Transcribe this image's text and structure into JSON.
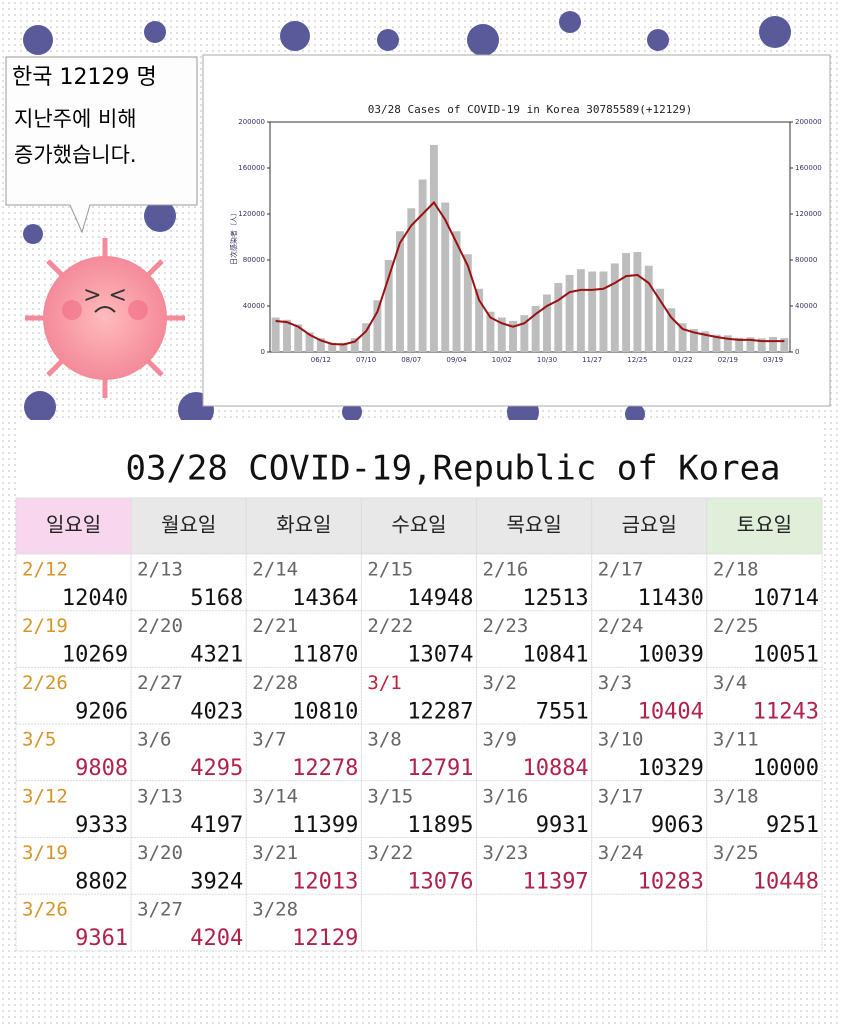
{
  "bubble": {
    "line1": "한국 12129 명",
    "line2": "지난주에 비해",
    "line3": "증가했습니다."
  },
  "chart_data": {
    "type": "bar-line",
    "title": "03/28 Cases of COVID-19 in Korea 30785589(+12129)",
    "y_label": "日次感染者（人）",
    "categories": [
      null,
      null,
      null,
      null,
      "06/12",
      null,
      null,
      null,
      "07/10",
      null,
      null,
      null,
      "08/07",
      null,
      null,
      null,
      "09/04",
      null,
      null,
      null,
      "10/02",
      null,
      null,
      null,
      "10/30",
      null,
      null,
      null,
      "11/27",
      null,
      null,
      null,
      "12/25",
      null,
      null,
      null,
      "01/22",
      null,
      null,
      null,
      "02/19",
      null,
      null,
      null,
      "03/19",
      null
    ],
    "series": [
      {
        "type": "bar",
        "color": "#bdbdbd",
        "values": [
          30000,
          28000,
          24000,
          17000,
          12000,
          8000,
          8000,
          12000,
          25000,
          45000,
          80000,
          105000,
          125000,
          150000,
          180000,
          130000,
          105000,
          85000,
          55000,
          35000,
          30000,
          27000,
          32000,
          40000,
          50000,
          60000,
          67000,
          72000,
          70000,
          70000,
          77000,
          86000,
          87000,
          75000,
          55000,
          38000,
          25000,
          20000,
          18000,
          15000,
          14500,
          12300,
          12800,
          11900,
          13100,
          12100
        ]
      },
      {
        "type": "line",
        "color": "#9b1010",
        "values": [
          27000,
          26000,
          22000,
          15000,
          10000,
          7000,
          6500,
          9000,
          18000,
          35000,
          65000,
          95000,
          110000,
          120000,
          130000,
          115000,
          95000,
          75000,
          45000,
          30000,
          25000,
          22000,
          25000,
          33000,
          40000,
          45000,
          52000,
          54000,
          54000,
          55000,
          60000,
          66000,
          67000,
          60000,
          45000,
          30000,
          20000,
          17000,
          15000,
          13000,
          11500,
          10500,
          10500,
          9500,
          9500,
          9500
        ]
      }
    ],
    "ylim": [
      0,
      200000
    ],
    "yticks": [
      0,
      40000,
      80000,
      120000,
      160000,
      200000
    ],
    "y2lim": [
      0,
      200000
    ],
    "y2ticks": [
      0,
      40000,
      80000,
      120000,
      160000,
      200000
    ]
  },
  "calendar": {
    "title": "03/28 COVID-19,Republic of Korea",
    "headers": [
      "일요일",
      "월요일",
      "화요일",
      "수요일",
      "목요일",
      "금요일",
      "토요일"
    ],
    "header_colors": [
      "#f8d7ee",
      "#e8e8e8",
      "#e8e8e8",
      "#e8e8e8",
      "#e8e8e8",
      "#e8e8e8",
      "#e1efda"
    ],
    "sunday_color": "#d4952a",
    "date_color": "#666666",
    "cases_color": "#111111",
    "rows": [
      [
        {
          "date": "2/12",
          "cases": "12040"
        },
        {
          "date": "2/13",
          "cases": "5168"
        },
        {
          "date": "2/14",
          "cases": "14364"
        },
        {
          "date": "2/15",
          "cases": "14948"
        },
        {
          "date": "2/16",
          "cases": "12513"
        },
        {
          "date": "2/17",
          "cases": "11430"
        },
        {
          "date": "2/18",
          "cases": "10714"
        }
      ],
      [
        {
          "date": "2/19",
          "cases": "10269"
        },
        {
          "date": "2/20",
          "cases": "4321"
        },
        {
          "date": "2/21",
          "cases": "11870"
        },
        {
          "date": "2/22",
          "cases": "13074"
        },
        {
          "date": "2/23",
          "cases": "10841"
        },
        {
          "date": "2/24",
          "cases": "10039"
        },
        {
          "date": "2/25",
          "cases": "10051"
        }
      ],
      [
        {
          "date": "2/26",
          "cases": "9206"
        },
        {
          "date": "2/27",
          "cases": "4023"
        },
        {
          "date": "2/28",
          "cases": "10810"
        },
        {
          "date": "3/1",
          "cases": "12287",
          "date_color": "#c0203c"
        },
        {
          "date": "3/2",
          "cases": "7551"
        },
        {
          "date": "3/3",
          "cases": "10404",
          "cases_color": "#b0224a"
        },
        {
          "date": "3/4",
          "cases": "11243",
          "cases_color": "#b0224a"
        }
      ],
      [
        {
          "date": "3/5",
          "cases": "9808",
          "cases_color": "#b0224a"
        },
        {
          "date": "3/6",
          "cases": "4295",
          "cases_color": "#b0224a"
        },
        {
          "date": "3/7",
          "cases": "12278",
          "cases_color": "#b0224a"
        },
        {
          "date": "3/8",
          "cases": "12791",
          "cases_color": "#b0224a"
        },
        {
          "date": "3/9",
          "cases": "10884",
          "cases_color": "#b0224a"
        },
        {
          "date": "3/10",
          "cases": "10329"
        },
        {
          "date": "3/11",
          "cases": "10000"
        }
      ],
      [
        {
          "date": "3/12",
          "cases": "9333"
        },
        {
          "date": "3/13",
          "cases": "4197"
        },
        {
          "date": "3/14",
          "cases": "11399"
        },
        {
          "date": "3/15",
          "cases": "11895"
        },
        {
          "date": "3/16",
          "cases": "9931"
        },
        {
          "date": "3/17",
          "cases": "9063"
        },
        {
          "date": "3/18",
          "cases": "9251"
        }
      ],
      [
        {
          "date": "3/19",
          "cases": "8802"
        },
        {
          "date": "3/20",
          "cases": "3924"
        },
        {
          "date": "3/21",
          "cases": "12013",
          "cases_color": "#b0224a"
        },
        {
          "date": "3/22",
          "cases": "13076",
          "cases_color": "#b0224a"
        },
        {
          "date": "3/23",
          "cases": "11397",
          "cases_color": "#b0224a"
        },
        {
          "date": "3/24",
          "cases": "10283",
          "cases_color": "#b0224a"
        },
        {
          "date": "3/25",
          "cases": "10448",
          "cases_color": "#b0224a"
        }
      ],
      [
        {
          "date": "3/26",
          "cases": "9361",
          "cases_color": "#b0224a"
        },
        {
          "date": "3/27",
          "cases": "4204",
          "cases_color": "#b0224a"
        },
        {
          "date": "3/28",
          "cases": "12129",
          "cases_color": "#b0224a"
        },
        null,
        null,
        null,
        null
      ]
    ]
  }
}
